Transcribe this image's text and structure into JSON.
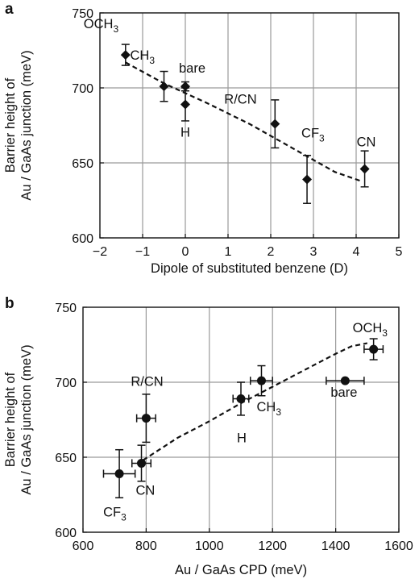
{
  "chart_data": [
    {
      "panel_label": "a",
      "type": "scatter",
      "xlabel": "Dipole of substituted benzene (D)",
      "ylabel_lines": [
        "Barrier height of",
        "Au / GaAs junction (meV)"
      ],
      "xlim": [
        -2,
        5
      ],
      "ylim": [
        600,
        750
      ],
      "xticks": [
        -2,
        -1,
        0,
        1,
        2,
        3,
        4,
        5
      ],
      "yticks": [
        600,
        650,
        700,
        750
      ],
      "grid": true,
      "marker": "diamond",
      "points": [
        {
          "label": "OCH",
          "sub": "3",
          "x": -1.4,
          "y": 722,
          "yerr": 7
        },
        {
          "label": "CH",
          "sub": "3",
          "x": -0.5,
          "y": 701,
          "yerr": 10
        },
        {
          "label": "bare",
          "sub": "",
          "x": 0.0,
          "y": 701,
          "yerr": 3
        },
        {
          "label": "H",
          "sub": "",
          "x": 0.0,
          "y": 689,
          "yerr": 11
        },
        {
          "label": "R/CN",
          "sub": "",
          "x": 2.1,
          "y": 676,
          "yerr": 16
        },
        {
          "label": "CF",
          "sub": "3",
          "x": 2.85,
          "y": 639,
          "yerr": 16
        },
        {
          "label": "CN",
          "sub": "",
          "x": 4.2,
          "y": 646,
          "yerr": 12
        }
      ],
      "fit_line": {
        "x": [
          -1.4,
          -0.5,
          0.5,
          1.5,
          2.5,
          3.0,
          3.5,
          4.1
        ],
        "y": [
          717,
          703,
          690,
          676,
          660,
          652,
          644,
          638
        ]
      }
    },
    {
      "panel_label": "b",
      "type": "scatter",
      "xlabel": "Au / GaAs CPD (meV)",
      "ylabel_lines": [
        "Barrier height of",
        "Au / GaAs junction (meV)"
      ],
      "xlim": [
        600,
        1600
      ],
      "ylim": [
        600,
        750
      ],
      "xticks": [
        600,
        800,
        1000,
        1200,
        1400,
        1600
      ],
      "yticks": [
        600,
        650,
        700,
        750
      ],
      "grid": true,
      "marker": "circle",
      "points": [
        {
          "label": "OCH",
          "sub": "3",
          "x": 1520,
          "y": 722,
          "xerr": 30,
          "yerr": 7
        },
        {
          "label": "bare",
          "sub": "",
          "x": 1430,
          "y": 701,
          "xerr": 60,
          "yerr": 0
        },
        {
          "label": "CH",
          "sub": "3",
          "x": 1165,
          "y": 701,
          "xerr": 35,
          "yerr": 10
        },
        {
          "label": "H",
          "sub": "",
          "x": 1100,
          "y": 689,
          "xerr": 25,
          "yerr": 11
        },
        {
          "label": "R/CN",
          "sub": "",
          "x": 800,
          "y": 676,
          "xerr": 30,
          "yerr": 16
        },
        {
          "label": "CN",
          "sub": "",
          "x": 785,
          "y": 646,
          "xerr": 30,
          "yerr": 12
        },
        {
          "label": "CF",
          "sub": "3",
          "x": 715,
          "y": 639,
          "xerr": 50,
          "yerr": 16
        }
      ],
      "fit_line": {
        "x": [
          790,
          900,
          1000,
          1100,
          1200,
          1300,
          1400,
          1450,
          1500
        ],
        "y": [
          648,
          663,
          674,
          686,
          697,
          708,
          719,
          724,
          726
        ]
      }
    }
  ]
}
